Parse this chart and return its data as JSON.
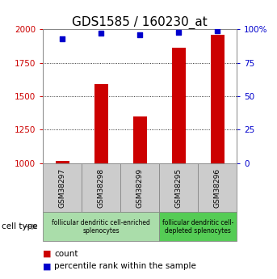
{
  "title": "GDS1585 / 160230_at",
  "samples": [
    "GSM38297",
    "GSM38298",
    "GSM38299",
    "GSM38295",
    "GSM38296"
  ],
  "counts": [
    1020,
    1590,
    1350,
    1860,
    1960
  ],
  "percentiles": [
    93,
    97,
    96,
    98,
    99
  ],
  "ylim_left": [
    1000,
    2000
  ],
  "ylim_right": [
    0,
    100
  ],
  "yticks_left": [
    1000,
    1250,
    1500,
    1750,
    2000
  ],
  "yticks_right": [
    0,
    25,
    50,
    75,
    100
  ],
  "bar_color": "#cc0000",
  "dot_color": "#0000cc",
  "bar_bottom": 1000,
  "bar_width": 0.35,
  "cell_type_groups": [
    {
      "label": "follicular dendritic cell-enriched\nsplenocytes",
      "start": 0,
      "end": 2,
      "color": "#aaddaa"
    },
    {
      "label": "follicular dendritic cell-\ndepleted splenocytes",
      "start": 3,
      "end": 4,
      "color": "#55cc55"
    }
  ],
  "legend_count_label": "count",
  "legend_pct_label": "percentile rank within the sample",
  "cell_type_label": "cell type",
  "bg_color": "#ffffff",
  "plot_bg": "#ffffff",
  "sample_box_bg": "#cccccc",
  "title_fontsize": 11,
  "tick_fontsize": 7.5,
  "sample_fontsize": 6.5,
  "celltype_fontsize": 5.5,
  "legend_fontsize": 7.5
}
